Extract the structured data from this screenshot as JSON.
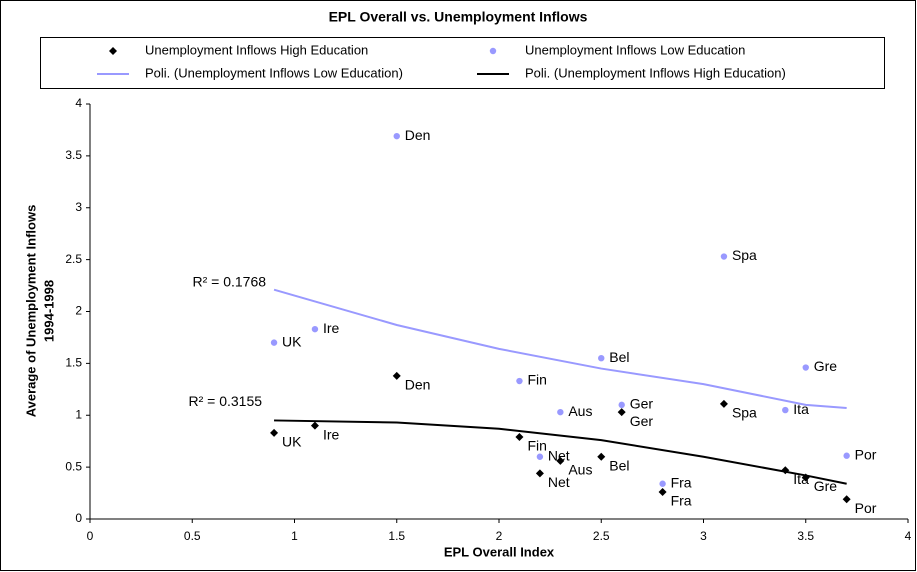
{
  "chart_data": {
    "type": "scatter",
    "title": "EPL Overall vs. Unemployment Inflows",
    "xlabel": "EPL Overall Index",
    "ylabel": [
      "Average of Unemployment Inflows",
      "1994-1998"
    ],
    "xlim": [
      0,
      4
    ],
    "ylim": [
      0,
      4
    ],
    "xticks": [
      0,
      0.5,
      1,
      1.5,
      2,
      2.5,
      3,
      3.5,
      4
    ],
    "yticks": [
      0,
      0.5,
      1,
      1.5,
      2,
      2.5,
      3,
      3.5,
      4
    ],
    "series": [
      {
        "name": "Unemployment Inflows High Education",
        "color": "#000000",
        "marker": "diamond",
        "labels": [
          "UK",
          "Ire",
          "Den",
          "Fin",
          "Net",
          "Aus",
          "Bel",
          "Ger",
          "Fra",
          "Spa",
          "Ita",
          "Gre",
          "Por"
        ],
        "x": [
          0.9,
          1.1,
          1.5,
          2.1,
          2.2,
          2.3,
          2.5,
          2.6,
          2.8,
          3.1,
          3.4,
          3.5,
          3.7
        ],
        "values": [
          0.83,
          0.9,
          1.38,
          0.79,
          0.44,
          0.56,
          0.6,
          1.03,
          0.26,
          1.11,
          0.47,
          0.4,
          0.19
        ]
      },
      {
        "name": "Unemployment Inflows Low Education",
        "color": "#9999ff",
        "marker": "circle",
        "labels": [
          "UK",
          "Ire",
          "Den",
          "Fin",
          "Net",
          "Aus",
          "Bel",
          "Ger",
          "Fra",
          "Spa",
          "Ita",
          "Gre",
          "Por"
        ],
        "x": [
          0.9,
          1.1,
          1.5,
          2.1,
          2.2,
          2.3,
          2.5,
          2.6,
          2.8,
          3.1,
          3.4,
          3.5,
          3.7
        ],
        "values": [
          1.7,
          1.83,
          3.69,
          1.33,
          0.6,
          1.03,
          1.55,
          1.1,
          0.34,
          2.53,
          1.05,
          1.46,
          0.61
        ]
      },
      {
        "name": "Poli. (Unemployment Inflows Low Education)",
        "color": "#9999ff",
        "marker": "line",
        "r_squared": "R² = 0.1768",
        "x": [
          0.9,
          1.5,
          2.0,
          2.5,
          3.0,
          3.5,
          3.7
        ],
        "values": [
          2.21,
          1.87,
          1.64,
          1.45,
          1.3,
          1.1,
          1.07
        ]
      },
      {
        "name": "Poli. (Unemployment Inflows High Education)",
        "color": "#000000",
        "marker": "line",
        "r_squared": "R² = 0.3155",
        "x": [
          0.9,
          1.5,
          2.0,
          2.5,
          3.0,
          3.5,
          3.7
        ],
        "values": [
          0.95,
          0.93,
          0.87,
          0.76,
          0.6,
          0.42,
          0.34
        ]
      }
    ]
  }
}
